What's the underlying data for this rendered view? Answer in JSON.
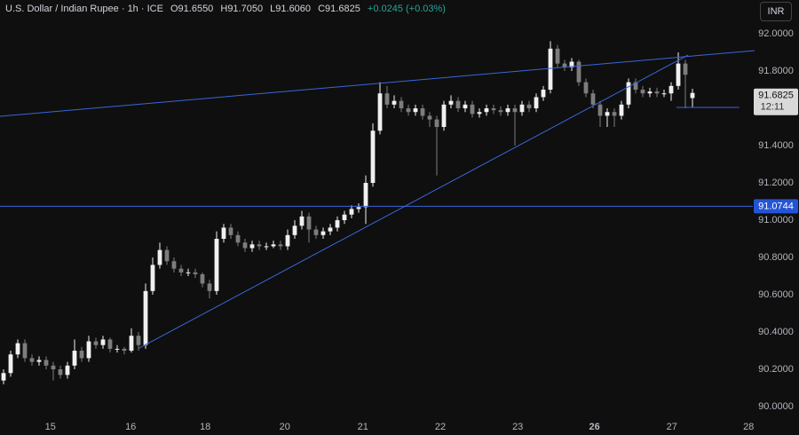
{
  "chart_data": {
    "type": "candlestick",
    "title": "U.S. Dollar / Indian Rupee · 1h · ICE",
    "ohlc_labels": [
      "O91.6550",
      "H91.7050",
      "L91.6060",
      "C91.6825",
      "+0.0245 (+0.03%)"
    ],
    "currency_button": "INR",
    "up_color": "#f0f0f0",
    "down_color": "#7d7d7d",
    "line_color": "#3a66d9",
    "x": [
      0,
      1,
      2,
      3,
      4,
      5,
      6,
      7,
      8,
      9,
      10,
      11,
      12,
      13,
      14,
      15,
      16,
      17,
      18,
      19,
      20,
      21,
      22,
      23,
      24,
      25,
      26,
      27,
      28,
      29,
      30,
      31,
      32,
      33,
      34,
      35,
      36,
      37,
      38,
      39,
      40,
      41,
      42,
      43,
      44,
      45,
      46,
      47,
      48,
      49,
      50,
      51,
      52,
      53,
      54,
      55,
      56,
      57,
      58,
      59,
      60,
      61,
      62,
      63,
      64,
      65,
      66,
      67,
      68,
      69,
      70,
      71,
      72,
      73,
      74,
      75,
      76,
      77,
      78,
      79,
      80,
      81,
      82,
      83,
      84,
      85,
      86,
      87,
      88,
      89,
      90,
      91,
      92,
      93,
      94,
      95,
      96,
      97
    ],
    "open": [
      90.14,
      90.18,
      90.28,
      90.34,
      90.26,
      90.24,
      90.25,
      90.22,
      90.2,
      90.17,
      90.22,
      90.3,
      90.26,
      90.35,
      90.33,
      90.36,
      90.31,
      90.31,
      90.3,
      90.38,
      90.33,
      90.62,
      90.76,
      90.84,
      90.78,
      90.74,
      90.72,
      90.72,
      90.71,
      90.66,
      90.62,
      90.9,
      90.96,
      90.92,
      90.88,
      90.85,
      90.87,
      90.86,
      90.86,
      90.87,
      90.86,
      90.92,
      90.97,
      91.02,
      90.95,
      90.92,
      90.94,
      90.96,
      91.0,
      91.03,
      91.06,
      91.07,
      91.2,
      91.48,
      91.68,
      91.62,
      91.64,
      91.6,
      91.58,
      91.6,
      91.56,
      91.54,
      91.5,
      91.62,
      91.64,
      91.6,
      91.62,
      91.57,
      91.58,
      91.6,
      91.59,
      91.58,
      91.6,
      91.58,
      91.62,
      91.6,
      91.66,
      91.7,
      91.92,
      91.84,
      91.82,
      91.85,
      91.74,
      91.68,
      91.62,
      91.56,
      91.58,
      91.56,
      91.62,
      91.74,
      91.7,
      91.68,
      91.69,
      91.68,
      91.68,
      91.72,
      91.84,
      91.655
    ],
    "high": [
      90.2,
      90.3,
      90.36,
      90.36,
      90.28,
      90.27,
      90.27,
      90.24,
      90.22,
      90.24,
      90.36,
      90.32,
      90.38,
      90.37,
      90.38,
      90.37,
      90.33,
      90.32,
      90.42,
      90.4,
      90.66,
      90.8,
      90.88,
      90.86,
      90.8,
      90.76,
      90.74,
      90.74,
      90.72,
      90.68,
      90.94,
      90.98,
      90.98,
      90.94,
      90.9,
      90.89,
      90.89,
      90.88,
      90.89,
      90.89,
      90.95,
      91.0,
      91.05,
      91.04,
      90.97,
      90.96,
      90.98,
      91.02,
      91.05,
      91.08,
      91.09,
      91.24,
      91.52,
      91.74,
      91.72,
      91.67,
      91.66,
      91.62,
      91.62,
      91.62,
      91.58,
      91.56,
      91.64,
      91.67,
      91.66,
      91.64,
      91.64,
      91.6,
      91.62,
      91.62,
      91.61,
      91.62,
      91.62,
      91.64,
      91.64,
      91.68,
      91.72,
      91.96,
      91.94,
      91.86,
      91.87,
      91.86,
      91.76,
      91.7,
      91.64,
      91.6,
      91.6,
      91.64,
      91.76,
      91.76,
      91.72,
      91.71,
      91.71,
      91.7,
      91.74,
      91.9,
      91.86,
      91.705
    ],
    "low": [
      90.12,
      90.16,
      90.26,
      90.24,
      90.22,
      90.22,
      90.2,
      90.14,
      90.15,
      90.15,
      90.2,
      90.24,
      90.24,
      90.31,
      90.31,
      90.29,
      90.29,
      90.28,
      90.29,
      90.3,
      90.31,
      90.6,
      90.74,
      90.76,
      90.72,
      90.7,
      90.7,
      90.69,
      90.64,
      90.58,
      90.6,
      90.88,
      90.9,
      90.86,
      90.83,
      90.83,
      90.84,
      90.84,
      90.85,
      90.84,
      90.84,
      90.9,
      90.95,
      90.88,
      90.9,
      90.9,
      90.92,
      90.94,
      90.98,
      91.01,
      91.04,
      90.98,
      91.18,
      91.46,
      91.6,
      91.6,
      91.58,
      91.56,
      91.56,
      91.54,
      91.5,
      91.24,
      91.48,
      91.6,
      91.58,
      91.58,
      91.55,
      91.55,
      91.56,
      91.57,
      91.56,
      91.56,
      91.4,
      91.56,
      91.58,
      91.58,
      91.64,
      91.68,
      91.82,
      91.8,
      91.8,
      91.72,
      91.66,
      91.6,
      91.5,
      91.5,
      91.5,
      91.54,
      91.6,
      91.68,
      91.66,
      91.66,
      91.66,
      91.66,
      91.64,
      91.7,
      91.6,
      91.606
    ],
    "close": [
      90.18,
      90.28,
      90.34,
      90.26,
      90.24,
      90.25,
      90.22,
      90.2,
      90.17,
      90.22,
      90.3,
      90.26,
      90.35,
      90.33,
      90.36,
      90.31,
      90.31,
      90.3,
      90.38,
      90.33,
      90.62,
      90.76,
      90.84,
      90.78,
      90.74,
      90.72,
      90.72,
      90.71,
      90.66,
      90.62,
      90.9,
      90.96,
      90.92,
      90.88,
      90.85,
      90.87,
      90.86,
      90.86,
      90.87,
      90.86,
      90.92,
      90.97,
      91.02,
      90.95,
      90.92,
      90.94,
      90.96,
      91.0,
      91.03,
      91.06,
      91.07,
      91.2,
      91.48,
      91.68,
      91.62,
      91.64,
      91.6,
      91.58,
      91.6,
      91.56,
      91.54,
      91.5,
      91.62,
      91.64,
      91.6,
      91.62,
      91.57,
      91.58,
      91.6,
      91.59,
      91.58,
      91.6,
      91.58,
      91.62,
      91.6,
      91.66,
      91.7,
      91.92,
      91.84,
      91.82,
      91.85,
      91.74,
      91.68,
      91.62,
      91.56,
      91.58,
      91.56,
      91.62,
      91.74,
      91.7,
      91.68,
      91.69,
      91.68,
      91.68,
      91.72,
      91.84,
      91.78,
      91.6825
    ],
    "xlim": [
      -0.5,
      105.5
    ],
    "xticks": [
      {
        "value": 6.6,
        "label": "15"
      },
      {
        "value": 17.9,
        "label": "16"
      },
      {
        "value": 28.4,
        "label": "18"
      },
      {
        "value": 39.6,
        "label": "20"
      },
      {
        "value": 50.6,
        "label": "21"
      },
      {
        "value": 61.5,
        "label": "22"
      },
      {
        "value": 72.4,
        "label": "23"
      },
      {
        "value": 83.2,
        "label": "26"
      },
      {
        "value": 94.1,
        "label": "27"
      },
      {
        "value": 104.9,
        "label": "28"
      }
    ],
    "ylim": [
      89.943,
      92.181
    ],
    "yticks": [
      {
        "value": 90.0,
        "label": "90.0000"
      },
      {
        "value": 90.2,
        "label": "90.2000"
      },
      {
        "value": 90.4,
        "label": "90.4000"
      },
      {
        "value": 90.6,
        "label": "90.6000"
      },
      {
        "value": 90.8,
        "label": "90.8000"
      },
      {
        "value": 91.0,
        "label": "91.0000"
      },
      {
        "value": 91.2,
        "label": "91.2000"
      },
      {
        "value": 91.4,
        "label": "91.4000"
      },
      {
        "value": 91.6,
        "label": "91.6000"
      },
      {
        "value": 91.8,
        "label": "91.8000"
      },
      {
        "value": 92.0,
        "label": "92.0000"
      }
    ],
    "trendlines": [
      {
        "x": [
          -0.5,
          105.75
        ],
        "y": [
          91.557,
          91.9095
        ]
      },
      {
        "x": [
          19.1,
          96.4
        ],
        "y": [
          90.314,
          91.886
        ]
      },
      {
        "x": [
          94.75,
          103.6
        ],
        "y": [
          91.605,
          91.605
        ]
      }
    ],
    "horizontal_line": {
      "value": 91.0744,
      "label": "91.0744"
    },
    "last_price": {
      "value": 91.6825,
      "label": "91.6825",
      "countdown": "12:11"
    }
  }
}
